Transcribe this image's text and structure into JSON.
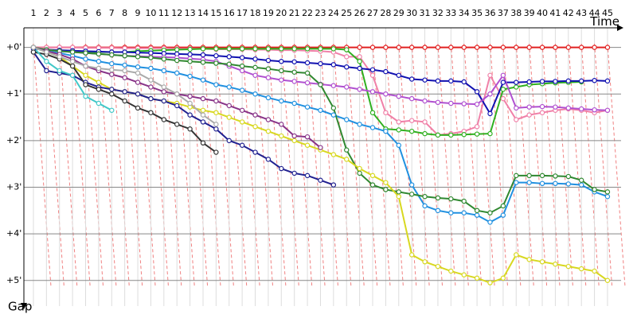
{
  "chart_data": {
    "type": "line",
    "x_label": "Time",
    "y_label": "Gap",
    "x": [
      1,
      2,
      3,
      4,
      5,
      6,
      7,
      8,
      9,
      10,
      11,
      12,
      13,
      14,
      15,
      16,
      17,
      18,
      19,
      20,
      21,
      22,
      23,
      24,
      25,
      26,
      27,
      28,
      29,
      30,
      31,
      32,
      33,
      34,
      35,
      36,
      37,
      38,
      39,
      40,
      41,
      42,
      43,
      44,
      45
    ],
    "xlim": [
      0.27,
      46.04
    ],
    "ylim": [
      -0.42,
      5.55
    ],
    "yticks": [
      {
        "value": 0,
        "label": "+0'"
      },
      {
        "value": 1,
        "label": "+1'"
      },
      {
        "value": 2,
        "label": "+2'"
      },
      {
        "value": 3,
        "label": "+3'"
      },
      {
        "value": 4,
        "label": "+4'"
      },
      {
        "value": 5,
        "label": "+5'"
      }
    ],
    "y_inverted": true,
    "grid": true,
    "series": [
      {
        "color": "#e02020",
        "values": [
          0,
          0,
          0,
          0,
          0,
          0,
          0,
          0,
          0,
          0,
          0,
          0,
          0,
          0,
          0,
          0,
          0,
          0,
          0,
          0,
          0,
          0,
          0,
          0,
          0,
          0,
          0,
          0,
          0,
          0,
          0,
          0,
          0,
          0,
          0,
          0,
          0,
          0,
          0,
          0,
          0,
          0,
          0,
          0,
          0
        ]
      },
      {
        "color": "#f080a8",
        "values": [
          0,
          0,
          0,
          0,
          0.01,
          0.01,
          0.01,
          0.02,
          0.02,
          0.02,
          0.02,
          0.03,
          0.03,
          0.03,
          0.04,
          0.04,
          0.04,
          0.05,
          0.05,
          0.06,
          0.06,
          0.07,
          0.08,
          0.1,
          0.2,
          0.2,
          0.6,
          1.4,
          1.6,
          1.57,
          1.6,
          1.88,
          1.85,
          1.8,
          1.7,
          0.6,
          1.1,
          1.55,
          1.45,
          1.4,
          1.35,
          1.32,
          1.35,
          1.4,
          1.35
        ]
      },
      {
        "color": "#30b020",
        "values": [
          0,
          0.05,
          0.08,
          0.1,
          0.1,
          0.1,
          0.1,
          0.1,
          0.08,
          0.07,
          0.06,
          0.05,
          0.04,
          0.03,
          0.03,
          0.03,
          0.03,
          0.03,
          0.03,
          0.03,
          0.03,
          0.03,
          0.03,
          0.03,
          0.05,
          0.3,
          1.4,
          1.75,
          1.77,
          1.8,
          1.85,
          1.88,
          1.88,
          1.87,
          1.86,
          1.85,
          0.9,
          0.85,
          0.8,
          0.78,
          0.76,
          0.75,
          0.74,
          null,
          null
        ]
      },
      {
        "color": "#1010b0",
        "values": [
          0.03,
          0.05,
          0.06,
          0.07,
          0.08,
          0.09,
          0.1,
          0.1,
          0.11,
          0.12,
          0.13,
          0.14,
          0.15,
          0.16,
          0.18,
          0.2,
          0.22,
          0.25,
          0.28,
          0.3,
          0.31,
          0.33,
          0.35,
          0.37,
          0.42,
          0.45,
          0.48,
          0.52,
          0.6,
          0.68,
          0.7,
          0.72,
          0.72,
          0.74,
          0.95,
          1.42,
          0.75,
          0.75,
          0.74,
          0.73,
          0.73,
          0.72,
          0.72,
          0.71,
          0.72
        ]
      },
      {
        "color": "#b050d0",
        "values": [
          0,
          0.05,
          0.08,
          0.1,
          0.12,
          0.14,
          0.16,
          0.18,
          0.19,
          0.2,
          0.21,
          0.22,
          0.24,
          0.26,
          0.3,
          0.4,
          0.5,
          0.6,
          0.65,
          0.7,
          0.73,
          0.76,
          0.79,
          0.82,
          0.85,
          0.9,
          0.95,
          1.0,
          1.05,
          1.1,
          1.15,
          1.18,
          1.2,
          1.21,
          1.22,
          1.0,
          0.6,
          1.3,
          1.28,
          1.27,
          1.28,
          1.3,
          1.32,
          1.34,
          1.35
        ]
      },
      {
        "color": "#2090e0",
        "values": [
          0,
          0.08,
          0.12,
          0.18,
          0.25,
          0.3,
          0.35,
          0.38,
          0.42,
          0.45,
          0.5,
          0.55,
          0.62,
          0.7,
          0.8,
          0.85,
          0.92,
          1.0,
          1.08,
          1.15,
          1.2,
          1.28,
          1.35,
          1.45,
          1.55,
          1.65,
          1.72,
          1.8,
          2.1,
          2.95,
          3.4,
          3.5,
          3.55,
          3.55,
          3.6,
          3.75,
          3.6,
          2.9,
          2.9,
          2.92,
          2.92,
          2.93,
          2.95,
          3.1,
          3.2
        ]
      },
      {
        "color": "#308830",
        "values": [
          0,
          0.05,
          0.08,
          0.1,
          0.12,
          0.14,
          0.16,
          0.18,
          0.2,
          0.22,
          0.25,
          0.28,
          0.3,
          0.32,
          0.34,
          0.36,
          0.4,
          0.43,
          0.46,
          0.5,
          0.53,
          0.55,
          0.8,
          1.3,
          2.2,
          2.7,
          2.95,
          3.05,
          3.1,
          3.15,
          3.2,
          3.23,
          3.25,
          3.3,
          3.5,
          3.55,
          3.4,
          2.75,
          2.75,
          2.75,
          2.76,
          2.77,
          2.85,
          3.05,
          3.1
        ]
      },
      {
        "color": "#d8d820",
        "values": [
          0,
          0.1,
          0.2,
          0.4,
          0.6,
          0.75,
          0.9,
          0.95,
          1.0,
          1.1,
          1.15,
          1.2,
          1.28,
          1.35,
          1.4,
          1.5,
          1.6,
          1.7,
          1.8,
          1.9,
          2.0,
          2.1,
          2.2,
          2.3,
          2.4,
          2.6,
          2.75,
          2.9,
          3.2,
          4.45,
          4.6,
          4.7,
          4.8,
          4.88,
          4.95,
          5.05,
          4.95,
          4.45,
          4.55,
          4.6,
          4.65,
          4.7,
          4.75,
          4.8,
          5.0
        ]
      },
      {
        "color": "#883388",
        "values": [
          0,
          0.08,
          0.15,
          0.25,
          0.4,
          0.5,
          0.58,
          0.65,
          0.75,
          0.85,
          0.95,
          1.0,
          1.05,
          1.1,
          1.15,
          1.25,
          1.35,
          1.45,
          1.55,
          1.65,
          1.9,
          1.92,
          2.15,
          null,
          null,
          null,
          null,
          null,
          null,
          null,
          null,
          null,
          null,
          null,
          null,
          null,
          null,
          null,
          null,
          null,
          null,
          null,
          null,
          null,
          null
        ]
      },
      {
        "color": "#202090",
        "values": [
          0.1,
          0.5,
          0.55,
          0.6,
          0.75,
          0.85,
          0.9,
          0.95,
          1.0,
          1.1,
          1.15,
          1.25,
          1.45,
          1.6,
          1.75,
          2.0,
          2.1,
          2.25,
          2.4,
          2.6,
          2.7,
          2.75,
          2.85,
          2.95,
          null,
          null,
          null,
          null,
          null,
          null,
          null,
          null,
          null,
          null,
          null,
          null,
          null,
          null,
          null,
          null,
          null,
          null,
          null,
          null,
          null
        ]
      },
      {
        "color": "#333333",
        "values": [
          0.1,
          0.15,
          0.25,
          0.4,
          0.8,
          0.9,
          1.0,
          1.15,
          1.3,
          1.4,
          1.55,
          1.65,
          1.75,
          2.05,
          2.25,
          null,
          null,
          null,
          null,
          null,
          null,
          null,
          null,
          null,
          null,
          null,
          null,
          null,
          null,
          null,
          null,
          null,
          null,
          null,
          null,
          null,
          null,
          null,
          null,
          null,
          null,
          null,
          null,
          null,
          null
        ]
      },
      {
        "color": "#40c8c8",
        "values": [
          0,
          0.3,
          0.5,
          0.6,
          1.05,
          1.2,
          1.35,
          null,
          null,
          null,
          null,
          null,
          null,
          null,
          null,
          null,
          null,
          null,
          null,
          null,
          null,
          null,
          null,
          null,
          null,
          null,
          null,
          null,
          null,
          null,
          null,
          null,
          null,
          null,
          null,
          null,
          null,
          null,
          null,
          null,
          null,
          null,
          null,
          null,
          null
        ]
      },
      {
        "color": "#aaaaaa",
        "values": [
          0,
          0.1,
          0.2,
          0.3,
          0.4,
          0.45,
          0.48,
          0.5,
          0.55,
          0.7,
          0.85,
          1.0,
          1.2,
          1.45,
          1.65,
          null,
          null,
          null,
          null,
          null,
          null,
          null,
          null,
          null,
          null,
          null,
          null,
          null,
          null,
          null,
          null,
          null,
          null,
          null,
          null,
          null,
          null,
          null,
          null,
          null,
          null,
          null,
          null,
          null,
          null
        ]
      }
    ]
  }
}
